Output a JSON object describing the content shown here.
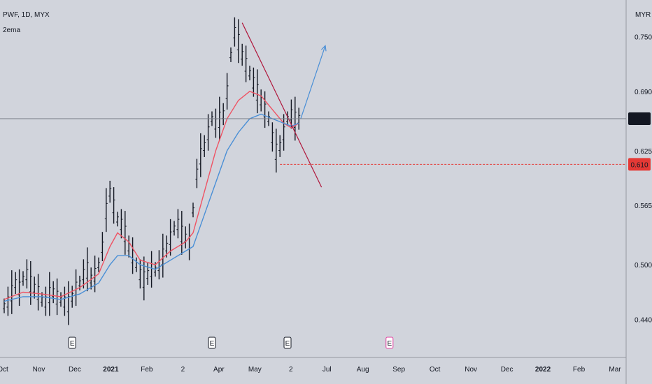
{
  "header": {
    "symbol_line": "PWF, 1D, MYX",
    "indicator": "2ema",
    "currency": "MYR"
  },
  "chart_data": {
    "type": "line",
    "title": "",
    "y_axis": {
      "ticks": [
        0.75,
        0.69,
        0.625,
        0.565,
        0.5,
        0.44
      ],
      "tick_labels": [
        "0.750",
        "0.690",
        "0.625",
        "0.565",
        "0.500",
        "0.440"
      ],
      "ylim": [
        0.4,
        0.79
      ]
    },
    "x_axis": {
      "tick_labels": [
        "Oct",
        "Nov",
        "Dec",
        "2021",
        "Feb",
        "2",
        "Apr",
        "May",
        "2",
        "Jul",
        "Aug",
        "Sep",
        "Oct",
        "Nov",
        "Dec",
        "2022",
        "Feb",
        "Mar"
      ],
      "bold_labels": [
        "2021",
        "2022"
      ]
    },
    "price_markers": [
      {
        "value": "0.660",
        "style": "last-price",
        "color": "#131722"
      },
      {
        "value": "0.610",
        "style": "horizontal-level",
        "color": "#e53935"
      }
    ],
    "series": [
      {
        "kind": "price-bars",
        "color": "#131722",
        "points": [
          [
            0,
            0.455
          ],
          [
            1,
            0.46
          ],
          [
            2,
            0.47
          ],
          [
            3,
            0.48
          ],
          [
            4,
            0.475
          ],
          [
            5,
            0.485
          ],
          [
            6,
            0.49
          ],
          [
            7,
            0.48
          ],
          [
            8,
            0.475
          ],
          [
            9,
            0.47
          ],
          [
            10,
            0.462
          ],
          [
            11,
            0.46
          ],
          [
            12,
            0.468
          ],
          [
            13,
            0.47
          ],
          [
            14,
            0.465
          ],
          [
            15,
            0.462
          ],
          [
            16,
            0.46
          ],
          [
            17,
            0.458
          ],
          [
            18,
            0.465
          ],
          [
            19,
            0.475
          ],
          [
            20,
            0.48
          ],
          [
            21,
            0.49
          ],
          [
            22,
            0.495
          ],
          [
            23,
            0.485
          ],
          [
            24,
            0.49
          ],
          [
            25,
            0.5
          ],
          [
            26,
            0.52
          ],
          [
            27,
            0.56
          ],
          [
            28,
            0.58
          ],
          [
            29,
            0.565
          ],
          [
            30,
            0.55
          ],
          [
            31,
            0.545
          ],
          [
            32,
            0.535
          ],
          [
            33,
            0.52
          ],
          [
            34,
            0.51
          ],
          [
            35,
            0.5
          ],
          [
            36,
            0.49
          ],
          [
            37,
            0.485
          ],
          [
            38,
            0.49
          ],
          [
            39,
            0.495
          ],
          [
            40,
            0.495
          ],
          [
            41,
            0.5
          ],
          [
            42,
            0.51
          ],
          [
            43,
            0.52
          ],
          [
            44,
            0.53
          ],
          [
            45,
            0.54
          ],
          [
            46,
            0.545
          ],
          [
            47,
            0.535
          ],
          [
            48,
            0.53
          ],
          [
            49,
            0.525
          ],
          [
            50,
            0.56
          ],
          [
            51,
            0.6
          ],
          [
            52,
            0.62
          ],
          [
            53,
            0.63
          ],
          [
            54,
            0.645
          ],
          [
            55,
            0.66
          ],
          [
            56,
            0.655
          ],
          [
            57,
            0.66
          ],
          [
            58,
            0.665
          ],
          [
            59,
            0.69
          ],
          [
            60,
            0.73
          ],
          [
            61,
            0.755
          ],
          [
            62,
            0.745
          ],
          [
            63,
            0.73
          ],
          [
            64,
            0.72
          ],
          [
            65,
            0.71
          ],
          [
            66,
            0.7
          ],
          [
            67,
            0.69
          ],
          [
            68,
            0.68
          ],
          [
            69,
            0.67
          ],
          [
            70,
            0.66
          ],
          [
            71,
            0.64
          ],
          [
            72,
            0.625
          ],
          [
            73,
            0.63
          ],
          [
            74,
            0.645
          ],
          [
            75,
            0.66
          ],
          [
            76,
            0.665
          ],
          [
            77,
            0.66
          ],
          [
            78,
            0.66
          ]
        ]
      },
      {
        "name": "",
        "kind": "ema-fast",
        "color": "#ef5364",
        "points": [
          [
            0,
            0.462
          ],
          [
            5,
            0.47
          ],
          [
            10,
            0.468
          ],
          [
            15,
            0.465
          ],
          [
            20,
            0.475
          ],
          [
            25,
            0.49
          ],
          [
            28,
            0.52
          ],
          [
            30,
            0.535
          ],
          [
            33,
            0.525
          ],
          [
            36,
            0.505
          ],
          [
            40,
            0.5
          ],
          [
            44,
            0.515
          ],
          [
            48,
            0.525
          ],
          [
            50,
            0.535
          ],
          [
            53,
            0.58
          ],
          [
            56,
            0.625
          ],
          [
            59,
            0.66
          ],
          [
            62,
            0.68
          ],
          [
            65,
            0.69
          ],
          [
            68,
            0.685
          ],
          [
            71,
            0.67
          ],
          [
            74,
            0.655
          ],
          [
            76,
            0.65
          ],
          [
            78,
            0.655
          ]
        ]
      },
      {
        "name": "",
        "kind": "ema-slow",
        "color": "#4a8fd6",
        "points": [
          [
            0,
            0.46
          ],
          [
            5,
            0.465
          ],
          [
            10,
            0.465
          ],
          [
            15,
            0.462
          ],
          [
            20,
            0.468
          ],
          [
            25,
            0.48
          ],
          [
            28,
            0.5
          ],
          [
            30,
            0.51
          ],
          [
            33,
            0.51
          ],
          [
            36,
            0.5
          ],
          [
            40,
            0.495
          ],
          [
            44,
            0.505
          ],
          [
            48,
            0.515
          ],
          [
            50,
            0.52
          ],
          [
            53,
            0.555
          ],
          [
            56,
            0.59
          ],
          [
            59,
            0.625
          ],
          [
            62,
            0.645
          ],
          [
            65,
            0.66
          ],
          [
            68,
            0.665
          ],
          [
            71,
            0.66
          ],
          [
            74,
            0.655
          ],
          [
            76,
            0.652
          ],
          [
            78,
            0.655
          ]
        ]
      }
    ],
    "drawings": [
      {
        "kind": "downtrend-line",
        "color": "#b0173c",
        "from": [
          63,
          0.765
        ],
        "to": [
          84,
          0.585
        ]
      },
      {
        "kind": "projection-arrow",
        "color": "#4a8fd6",
        "from": [
          78.5,
          0.66
        ],
        "to": [
          85,
          0.74
        ]
      }
    ],
    "earnings_markers": [
      {
        "label": "E",
        "x": 18,
        "color": "#131722"
      },
      {
        "label": "E",
        "x": 55,
        "color": "#131722"
      },
      {
        "label": "E",
        "x": 75,
        "color": "#131722"
      },
      {
        "label": "E",
        "x": 102,
        "color": "#e040a0"
      }
    ],
    "grid": false,
    "legend": "top-left"
  }
}
